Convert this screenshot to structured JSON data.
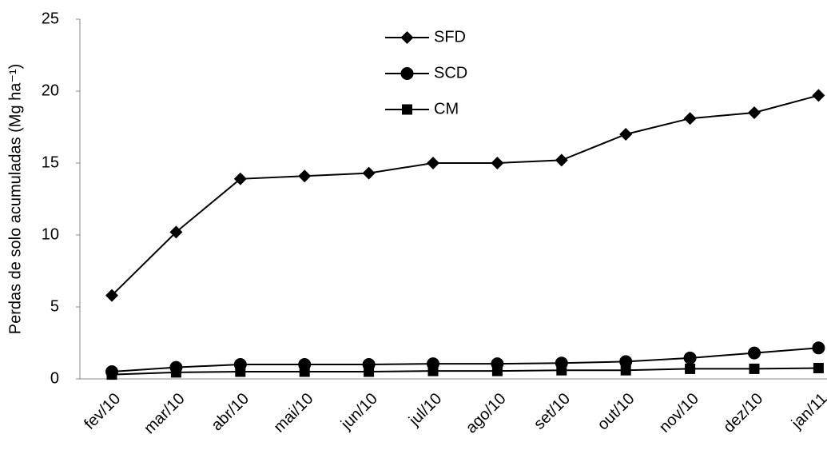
{
  "chart_data": {
    "type": "line",
    "ylabel": "Perdas de solo acumuladas (Mg ha⁻¹)",
    "categories": [
      "fev/10",
      "mar/10",
      "abr/10",
      "mai/10",
      "jun/10",
      "jul/10",
      "ago/10",
      "set/10",
      "out/10",
      "nov/10",
      "dez/10",
      "jan/11"
    ],
    "series": [
      {
        "name": "SFD",
        "color": "#000000",
        "marker": "diamond",
        "values": [
          5.8,
          10.2,
          13.9,
          14.1,
          14.3,
          15.0,
          15.0,
          15.2,
          17.0,
          18.1,
          18.5,
          19.7
        ]
      },
      {
        "name": "SCD",
        "color": "#000000",
        "marker": "circle",
        "values": [
          0.5,
          0.8,
          1.0,
          1.0,
          1.0,
          1.05,
          1.05,
          1.1,
          1.2,
          1.45,
          1.8,
          2.15
        ]
      },
      {
        "name": "CM",
        "color": "#000000",
        "marker": "square",
        "values": [
          0.3,
          0.45,
          0.5,
          0.5,
          0.5,
          0.55,
          0.55,
          0.6,
          0.6,
          0.7,
          0.7,
          0.75
        ]
      }
    ],
    "ylim": [
      0,
      25
    ],
    "yticks": [
      0,
      5,
      10,
      15,
      20,
      25
    ],
    "grid": false
  }
}
